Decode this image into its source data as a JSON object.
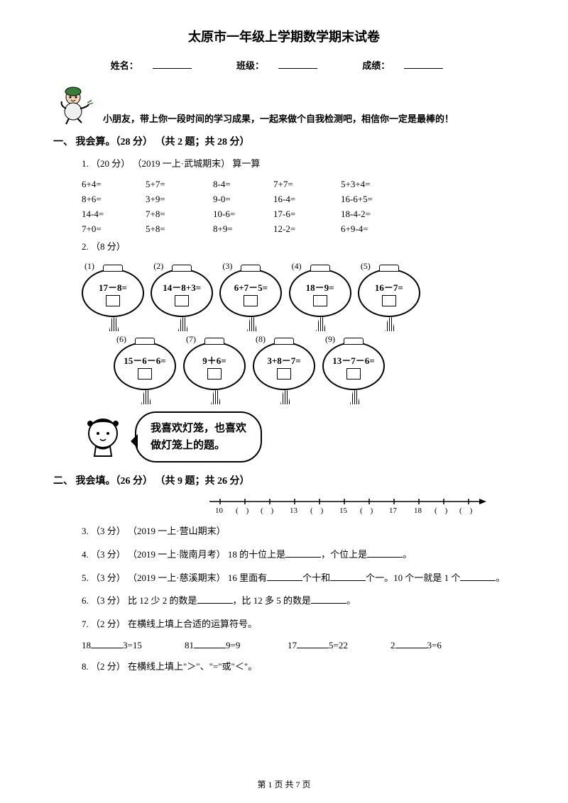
{
  "title": "太原市一年级上学期数学期末试卷",
  "info": {
    "name_label": "姓名：",
    "class_label": "班级：",
    "score_label": "成绩："
  },
  "intro": "小朋友，带上你一段时间的学习成果，一起来做个自我检测吧，相信你一定是最棒的！",
  "section1": {
    "header": "一、 我会算。（28 分） （共 2 题；共 28 分）",
    "q1": {
      "label": "1.  （20 分） （2019 一上·武城期末） 算一算",
      "rows": [
        [
          "6+4=",
          "5+7=",
          "8-4=",
          "7+7=",
          "5+3+4="
        ],
        [
          "8+6=",
          "3+9=",
          "9-0=",
          "16-4=",
          "16-6+5="
        ],
        [
          "14-4=",
          "7+8=",
          "10-6=",
          "17-6=",
          "18-4-2="
        ],
        [
          "7+0=",
          "5+8=",
          "8+9=",
          "12-2=",
          "6+9-4="
        ]
      ]
    },
    "q2": {
      "label": "2.  （8 分）",
      "lanterns_top": [
        {
          "num": "(1)",
          "eq": "17－8="
        },
        {
          "num": "(2)",
          "eq": "14－8+3="
        },
        {
          "num": "(3)",
          "eq": "6+7－5="
        },
        {
          "num": "(4)",
          "eq": "18－9="
        },
        {
          "num": "(5)",
          "eq": "16－7="
        }
      ],
      "lanterns_bottom": [
        {
          "num": "(6)",
          "eq": "15－6－6="
        },
        {
          "num": "(7)",
          "eq": "9＋6="
        },
        {
          "num": "(8)",
          "eq": "3+8－7="
        },
        {
          "num": "(9)",
          "eq": "13－7－6="
        }
      ],
      "speech_line1": "我喜欢灯笼，也喜欢",
      "speech_line2": "做灯笼上的题。"
    }
  },
  "section2": {
    "header": "二、 我会填。（26 分） （共 9 题；共 26 分）",
    "number_line": "10 (　)(　) 13 (　) 15 (　) 17  18 (　)(　)",
    "q3": "3.  （3 分） （2019 一上·营山期末）",
    "q4_pre": "4.  （3 分） （2019 一上·陇南月考） 18 的十位上是",
    "q4_mid": "，个位上是",
    "q4_end": "。",
    "q5_pre": "5.  （3 分） （2019 一上·慈溪期末） 16 里面有",
    "q5_mid1": "个十和",
    "q5_mid2": "个一。10 个一就是 1 个",
    "q5_end": "。",
    "q6_pre": "6.  （3 分）  比 12 少 2 的数是",
    "q6_mid": "，比 12 多 5 的数是",
    "q6_end": "。",
    "q7": "7.  （2 分）  在横线上填上合适的运算符号。",
    "q7_items": [
      {
        "a": "18",
        "b": "3=15"
      },
      {
        "a": "81",
        "b": "9=9"
      },
      {
        "a": "17",
        "b": "5=22"
      },
      {
        "a": "2",
        "b": "3=6"
      }
    ],
    "q8": "8.  （2 分）  在横线上填上\"＞\"、\"=\"或\"＜\"。"
  },
  "footer": "第 1 页 共 7 页"
}
